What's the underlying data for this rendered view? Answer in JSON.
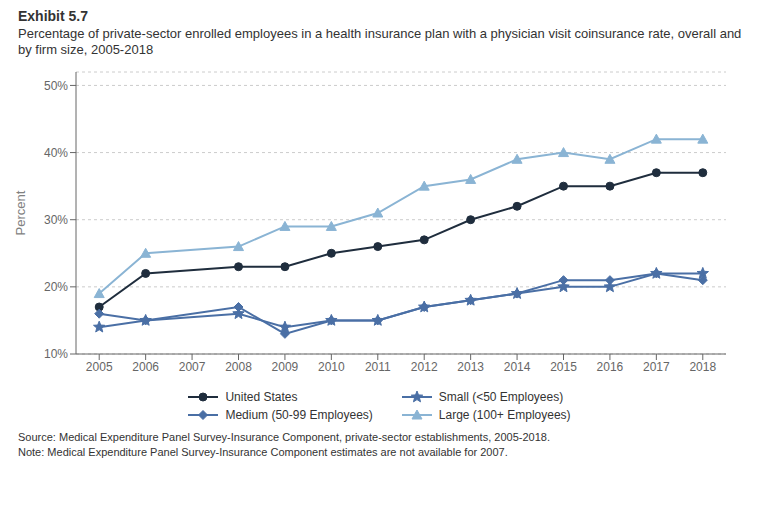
{
  "chart_data": {
    "type": "line",
    "title": "Exhibit 5.7",
    "subtitle": "Percentage of private-sector enrolled employees in a health insurance plan with a physician visit coinsurance rate, overall and by firm size, 2005-2018",
    "annotations": [
      "Source: Medical Expenditure Panel Survey-Insurance Component, private-sector establishments, 2005-2018.",
      "Note: Medical Expenditure Panel Survey-Insurance Component estimates are not available for 2007."
    ],
    "y_label": "Percent",
    "x": [
      2005,
      2006,
      2008,
      2009,
      2010,
      2011,
      2012,
      2013,
      2014,
      2015,
      2016,
      2017,
      2018
    ],
    "series": [
      {
        "name": "United States",
        "color": "#1f2d3d",
        "marker": "circle",
        "values": [
          17,
          22,
          23,
          23,
          25,
          26,
          27,
          30,
          32,
          35,
          35,
          37,
          37
        ]
      },
      {
        "name": "Small (<50 Employees)",
        "color": "#4a6fa5",
        "marker": "star",
        "values": [
          14,
          15,
          16,
          14,
          15,
          15,
          17,
          18,
          19,
          20,
          20,
          22,
          22
        ]
      },
      {
        "name": "Medium (50-99 Employees)",
        "color": "#4a6fa5",
        "marker": "diamond",
        "values": [
          16,
          15,
          17,
          13,
          15,
          15,
          17,
          18,
          19,
          21,
          21,
          22,
          21
        ]
      },
      {
        "name": "Large (100+ Employees)",
        "color": "#8ab4d4",
        "marker": "triangle",
        "values": [
          19,
          25,
          26,
          29,
          29,
          31,
          35,
          36,
          39,
          40,
          39,
          42,
          42
        ]
      }
    ],
    "xlim": [
      2004.5,
      2018.5
    ],
    "xticks": [
      2005,
      2006,
      2007,
      2008,
      2009,
      2010,
      2011,
      2012,
      2013,
      2014,
      2015,
      2016,
      2017,
      2018
    ],
    "ylim": [
      10,
      52
    ],
    "yticks": [
      {
        "value": 10,
        "label": "10%"
      },
      {
        "value": 20,
        "label": "20%"
      },
      {
        "value": 30,
        "label": "30%"
      },
      {
        "value": 40,
        "label": "40%"
      },
      {
        "value": 50,
        "label": "50%"
      }
    ],
    "grid": true,
    "legend": "bottom"
  }
}
